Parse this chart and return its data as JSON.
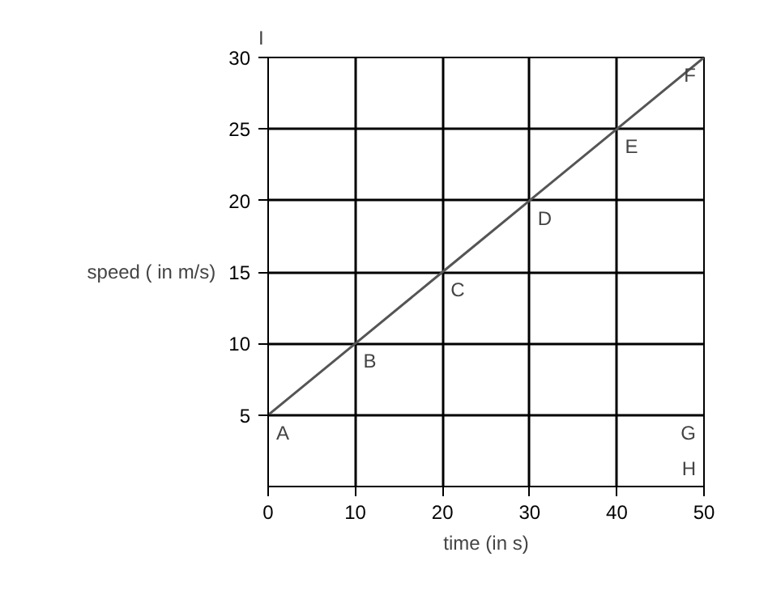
{
  "chart_data": {
    "type": "line",
    "xlabel": "time (in s)",
    "ylabel": "speed ( in m/s)",
    "x": [
      0,
      10,
      20,
      30,
      40,
      50
    ],
    "series": [
      {
        "color": "#555555",
        "values": [
          5,
          10,
          15,
          20,
          25,
          30
        ]
      }
    ],
    "xlim": [
      0,
      50
    ],
    "ylim": [
      0,
      30
    ],
    "xticks": [
      0,
      10,
      20,
      30,
      40,
      50
    ],
    "yticks": [
      5,
      10,
      15,
      20,
      25,
      30
    ],
    "grid": true,
    "marker": "none",
    "line_style": "solid",
    "annotations": [
      {
        "text": "A",
        "x": 0,
        "y": 5
      },
      {
        "text": "B",
        "x": 10,
        "y": 10
      },
      {
        "text": "C",
        "x": 20,
        "y": 15
      },
      {
        "text": "D",
        "x": 30,
        "y": 20
      },
      {
        "text": "E",
        "x": 40,
        "y": 25
      },
      {
        "text": "F",
        "x": 50,
        "y": 30
      },
      "G",
      "H",
      "I"
    ]
  }
}
